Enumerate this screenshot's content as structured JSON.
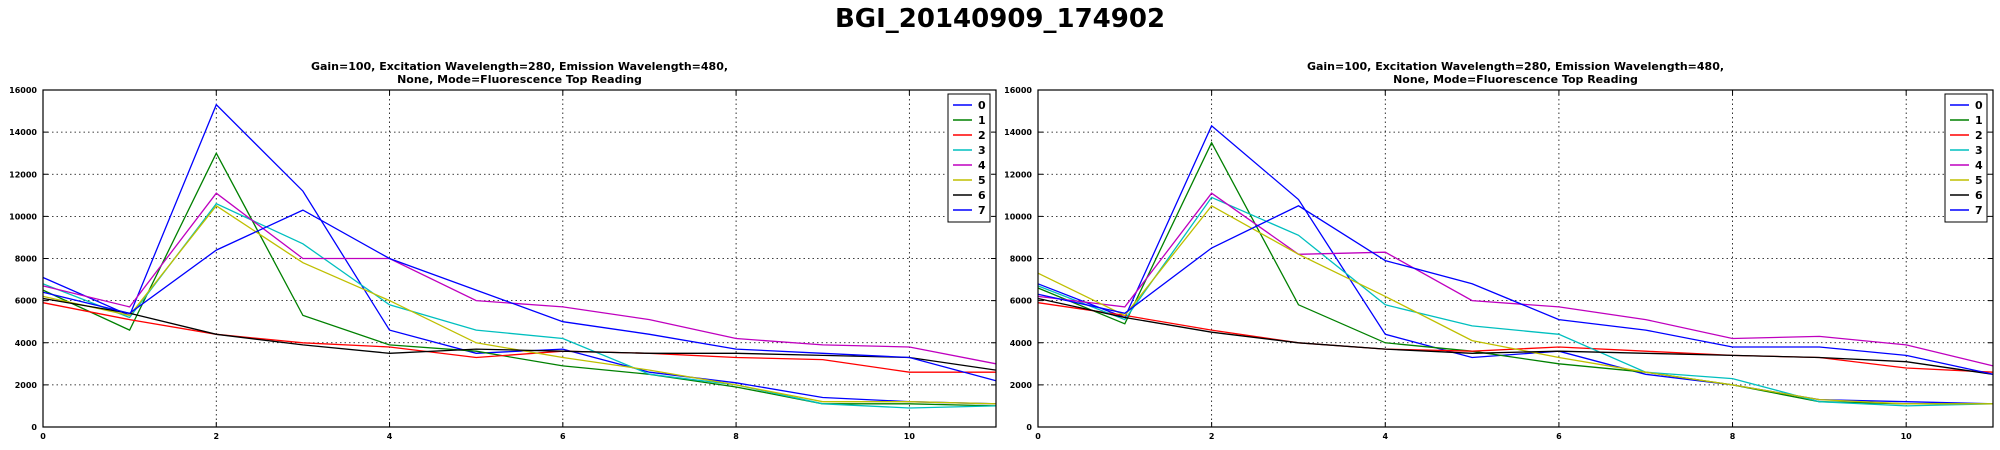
{
  "figure": {
    "title": "BGI_20140909_174902"
  },
  "chart_data": [
    {
      "type": "line",
      "title": "Gain=100, Excitation Wavelength=280, Emission Wavelength=480,",
      "subtitle": "None, Mode=Fluorescence Top Reading",
      "xlabel": "",
      "ylabel": "",
      "xlim": [
        0,
        11
      ],
      "ylim": [
        0,
        16000
      ],
      "xticks": [
        0,
        2,
        4,
        6,
        8,
        10
      ],
      "yticks": [
        0,
        2000,
        4000,
        6000,
        8000,
        10000,
        12000,
        14000,
        16000
      ],
      "grid": true,
      "legend_position": "top-right",
      "x": [
        0,
        1,
        2,
        3,
        4,
        5,
        6,
        7,
        8,
        9,
        10,
        11
      ],
      "series": [
        {
          "name": "0",
          "color": "#0000ff",
          "values": [
            7100,
            5300,
            15300,
            11200,
            4600,
            3500,
            3700,
            2600,
            2100,
            1400,
            1200,
            1100
          ]
        },
        {
          "name": "1",
          "color": "#008000",
          "values": [
            6500,
            4600,
            13000,
            5300,
            3900,
            3600,
            2900,
            2500,
            1900,
            1100,
            1100,
            1000
          ]
        },
        {
          "name": "2",
          "color": "#ff0000",
          "values": [
            5900,
            5100,
            4400,
            4000,
            3800,
            3300,
            3600,
            3500,
            3300,
            3200,
            2600,
            2600
          ]
        },
        {
          "name": "3",
          "color": "#00bfbf",
          "values": [
            6800,
            5200,
            10600,
            8700,
            5800,
            4600,
            4200,
            2500,
            2000,
            1100,
            900,
            1000
          ]
        },
        {
          "name": "4",
          "color": "#bf00bf",
          "values": [
            6700,
            5700,
            11100,
            8000,
            8000,
            6000,
            5700,
            5100,
            4200,
            3900,
            3800,
            3000
          ]
        },
        {
          "name": "5",
          "color": "#bfbf00",
          "values": [
            6200,
            5300,
            10500,
            7800,
            6000,
            4000,
            3300,
            2700,
            2000,
            1200,
            1200,
            1100
          ]
        },
        {
          "name": "6",
          "color": "#000000",
          "values": [
            6100,
            5400,
            4400,
            3900,
            3500,
            3700,
            3600,
            3500,
            3500,
            3400,
            3300,
            2700
          ]
        },
        {
          "name": "7",
          "color": "#0000ff",
          "values": [
            6400,
            5400,
            8400,
            10300,
            8000,
            6500,
            5000,
            4400,
            3700,
            3500,
            3300,
            2200
          ]
        }
      ]
    },
    {
      "type": "line",
      "title": "Gain=100, Excitation Wavelength=280, Emission Wavelength=480,",
      "subtitle": "None, Mode=Fluorescence Top Reading",
      "xlabel": "",
      "ylabel": "",
      "xlim": [
        0,
        11
      ],
      "ylim": [
        0,
        16000
      ],
      "xticks": [
        0,
        2,
        4,
        6,
        8,
        10
      ],
      "yticks": [
        0,
        2000,
        4000,
        6000,
        8000,
        10000,
        12000,
        14000,
        16000
      ],
      "grid": true,
      "legend_position": "top-right",
      "x": [
        0,
        1,
        2,
        3,
        4,
        5,
        6,
        7,
        8,
        9,
        10,
        11
      ],
      "series": [
        {
          "name": "0",
          "color": "#0000ff",
          "values": [
            6800,
            5200,
            14300,
            10800,
            4400,
            3300,
            3600,
            2500,
            2000,
            1300,
            1200,
            1100
          ]
        },
        {
          "name": "1",
          "color": "#008000",
          "values": [
            6600,
            4900,
            13500,
            5800,
            4000,
            3600,
            3000,
            2600,
            2000,
            1200,
            1100,
            1100
          ]
        },
        {
          "name": "2",
          "color": "#ff0000",
          "values": [
            5900,
            5300,
            4600,
            4000,
            3700,
            3600,
            3800,
            3600,
            3400,
            3300,
            2800,
            2600
          ]
        },
        {
          "name": "3",
          "color": "#00bfbf",
          "values": [
            6700,
            5100,
            10900,
            9100,
            5800,
            4800,
            4400,
            2600,
            2300,
            1200,
            1000,
            1100
          ]
        },
        {
          "name": "4",
          "color": "#bf00bf",
          "values": [
            6200,
            5700,
            11100,
            8200,
            8300,
            6000,
            5700,
            5100,
            4200,
            4300,
            3900,
            2900
          ]
        },
        {
          "name": "5",
          "color": "#bfbf00",
          "values": [
            7300,
            5300,
            10500,
            8200,
            6200,
            4100,
            3300,
            2600,
            2000,
            1300,
            1100,
            1100
          ]
        },
        {
          "name": "6",
          "color": "#000000",
          "values": [
            6100,
            5200,
            4500,
            4000,
            3700,
            3500,
            3600,
            3500,
            3400,
            3300,
            3100,
            2500
          ]
        },
        {
          "name": "7",
          "color": "#0000ff",
          "values": [
            6300,
            5400,
            8500,
            10500,
            7900,
            6800,
            5100,
            4600,
            3800,
            3800,
            3400,
            2500
          ]
        }
      ]
    }
  ]
}
